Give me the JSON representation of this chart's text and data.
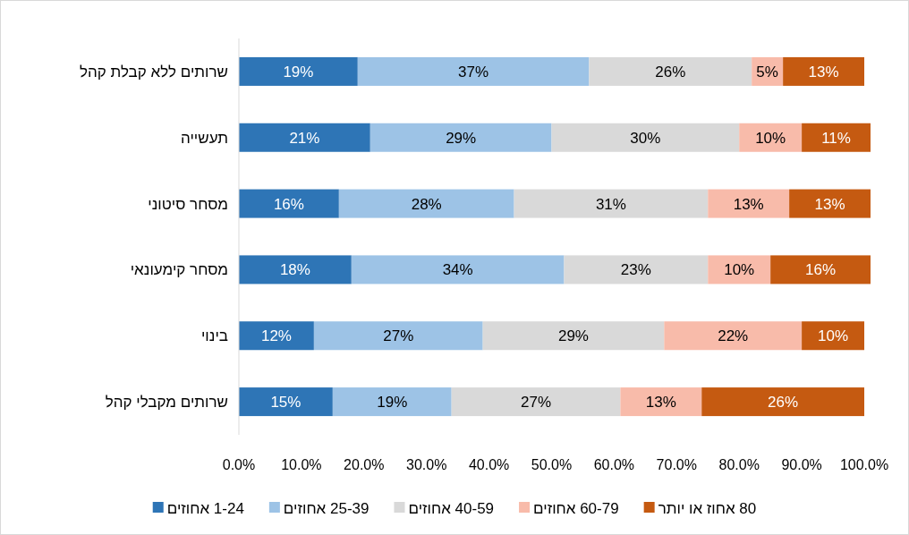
{
  "chart_data": {
    "type": "bar",
    "orientation": "horizontal",
    "stacked": true,
    "legend": "bottom",
    "categories": [
      "שרותים ללא קבלת קהל",
      "תעשייה",
      "מסחר סיטוני",
      "מסחר קימעונאי",
      "בינוי",
      "שרותים מקבלי קהל"
    ],
    "series": [
      {
        "name": "1-24 אחוזים",
        "color": "#2e75b6",
        "values": [
          19,
          21,
          16,
          18,
          12,
          15
        ],
        "value_labels": [
          "19%",
          "21%",
          "16%",
          "18%",
          "12%",
          "15%"
        ]
      },
      {
        "name": "25-39 אחוזים",
        "color": "#9dc3e6",
        "values": [
          37,
          29,
          28,
          34,
          27,
          19
        ],
        "value_labels": [
          "37%",
          "29%",
          "28%",
          "34%",
          "27%",
          "19%"
        ]
      },
      {
        "name": "40-59 אחוזים",
        "color": "#d9d9d9",
        "values": [
          26,
          30,
          31,
          23,
          29,
          27
        ],
        "value_labels": [
          "26%",
          "30%",
          "31%",
          "23%",
          "29%",
          "27%"
        ]
      },
      {
        "name": "60-79 אחוזים",
        "color": "#f8bbaa",
        "values": [
          5,
          10,
          13,
          10,
          22,
          13
        ],
        "value_labels": [
          "5%",
          "10%",
          "13%",
          "10%",
          "22%",
          "13%"
        ]
      },
      {
        "name": "80 אחוז או יותר",
        "color": "#c55a11",
        "values": [
          13,
          11,
          13,
          16,
          10,
          26
        ],
        "value_labels": [
          "13%",
          "11%",
          "13%",
          "16%",
          "10%",
          "26%"
        ]
      }
    ],
    "xlim": [
      0,
      101
    ],
    "xticks": [
      {
        "value": 0,
        "label": "0.0%"
      },
      {
        "value": 10,
        "label": "10.0%"
      },
      {
        "value": 20,
        "label": "20.0%"
      },
      {
        "value": 30,
        "label": "30.0%"
      },
      {
        "value": 40,
        "label": "40.0%"
      },
      {
        "value": 50,
        "label": "50.0%"
      },
      {
        "value": 60,
        "label": "60.0%"
      },
      {
        "value": 70,
        "label": "70.0%"
      },
      {
        "value": 80,
        "label": "80.0%"
      },
      {
        "value": 90,
        "label": "90.0%"
      },
      {
        "value": 100,
        "label": "100.0%"
      }
    ]
  }
}
